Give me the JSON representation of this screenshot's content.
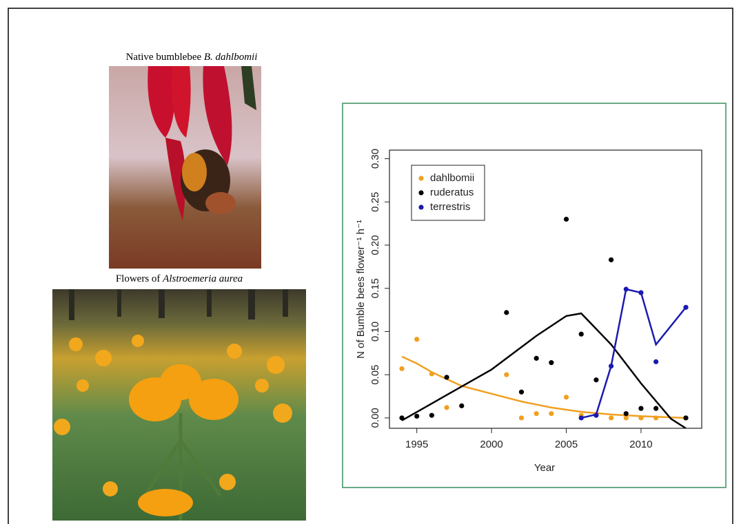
{
  "captions": {
    "photo_1": {
      "text": "Native bumblebee ",
      "species": "B. dahlbomii"
    },
    "photo_2": {
      "text": "Flowers of ",
      "species": "Alstroemeria aurea"
    }
  },
  "chart_data": {
    "type": "scatter",
    "x_label": "Year",
    "y_label": "N of Bumble bees flower⁻¹ h⁻¹",
    "xlim": [
      1993.17,
      2014.06
    ],
    "xticks": [
      1995,
      2000,
      2005,
      2010
    ],
    "ylim": [
      -0.012,
      0.31
    ],
    "yticks": [
      {
        "value": 0,
        "label": "0.00"
      },
      0.05,
      {
        "value": 0.1,
        "label": "0.10"
      },
      0.15,
      {
        "value": 0.2,
        "label": "0.20"
      },
      0.25,
      {
        "value": 0.3,
        "label": "0.30"
      }
    ],
    "legend": "top-left",
    "series": [
      {
        "name": "dahlbomii",
        "color": "#f0a020",
        "x": [
          1994,
          1995,
          1996,
          1997,
          2001,
          2002,
          2003,
          2004,
          2005,
          2006,
          2007,
          2008,
          2009,
          2010,
          2011,
          2013
        ],
        "values": [
          0.057,
          0.091,
          0.051,
          0.012,
          0.05,
          0.0,
          0.005,
          0.005,
          0.024,
          0.003,
          0.004,
          0.0,
          0.0,
          0.0,
          0.0,
          0.0
        ],
        "fit": {
          "x": [
            1994,
            1995,
            1996,
            1998,
            2000,
            2002,
            2004,
            2006,
            2008,
            2010,
            2013
          ],
          "values": [
            0.071,
            0.063,
            0.053,
            0.037,
            0.028,
            0.019,
            0.012,
            0.007,
            0.004,
            0.002,
            0.0
          ]
        }
      },
      {
        "name": "ruderatus",
        "color": "#000000",
        "x": [
          1994,
          1995,
          1996,
          1997,
          1998,
          2001,
          2002,
          2003,
          2004,
          2005,
          2006,
          2007,
          2008,
          2009,
          2010,
          2011,
          2013
        ],
        "values": [
          0.0,
          0.002,
          0.003,
          0.047,
          0.014,
          0.122,
          0.03,
          0.069,
          0.064,
          0.23,
          0.097,
          0.044,
          0.183,
          0.005,
          0.011,
          0.011,
          0.0
        ],
        "fit": {
          "x": [
            1994,
            2000,
            2003,
            2005,
            2006,
            2008,
            2010,
            2012,
            2013
          ],
          "values": [
            -0.003,
            0.056,
            0.095,
            0.118,
            0.121,
            0.085,
            0.04,
            -0.001,
            -0.012
          ]
        }
      },
      {
        "name": "terrestris",
        "color": "#1a1ab0",
        "x": [
          2006,
          2007,
          2008,
          2009,
          2010,
          2011,
          2013
        ],
        "values": [
          0.0,
          0.003,
          0.06,
          0.149,
          0.145,
          0.065,
          0.128
        ],
        "fit": {
          "x": [
            2006,
            2007,
            2008,
            2009,
            2010,
            2011,
            2013
          ],
          "values": [
            0.0,
            0.004,
            0.06,
            0.149,
            0.145,
            0.085,
            0.128
          ]
        }
      }
    ]
  }
}
